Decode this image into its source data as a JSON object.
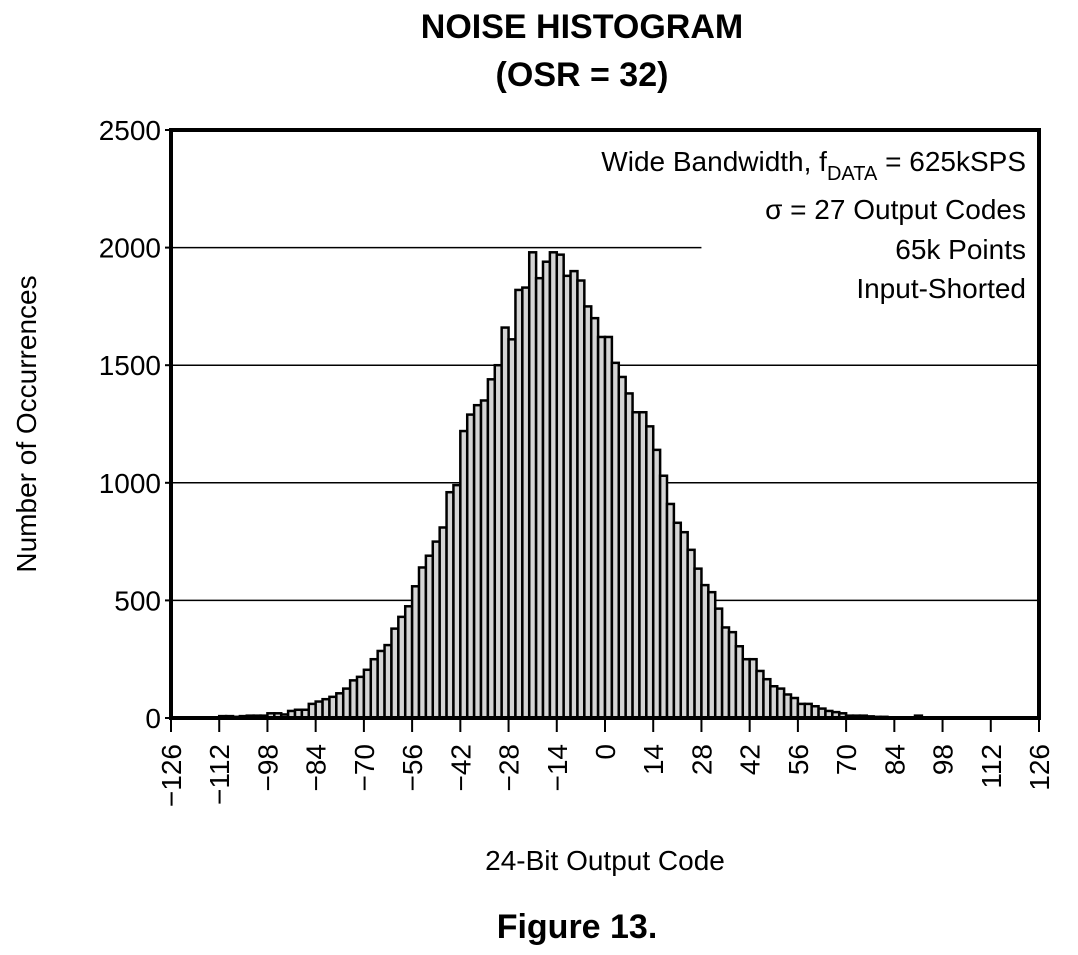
{
  "chart_data": {
    "type": "bar",
    "title": "NOISE HISTOGRAM",
    "subtitle": "(OSR = 32)",
    "xlabel": "24-Bit Output Code",
    "ylabel": "Number of Occurrences",
    "caption": "Figure 13.",
    "xlim": [
      -126,
      126
    ],
    "ylim": [
      0,
      2500
    ],
    "x_ticks": [
      -126,
      -112,
      -98,
      -84,
      -70,
      -56,
      -42,
      -28,
      -14,
      0,
      14,
      28,
      42,
      56,
      70,
      84,
      98,
      112,
      126
    ],
    "x_tick_labels": [
      "−126",
      "−112",
      "−98",
      "−84",
      "−70",
      "−56",
      "−42",
      "−28",
      "−14",
      "0",
      "14",
      "28",
      "42",
      "56",
      "70",
      "84",
      "98",
      "112",
      "126"
    ],
    "y_ticks": [
      0,
      500,
      1000,
      1500,
      2000,
      2500
    ],
    "y_tick_labels": [
      "0",
      "500",
      "1000",
      "1500",
      "2000",
      "2500"
    ],
    "grid": "horizontal",
    "bin_width": 2,
    "bins": [
      -111,
      -109,
      -107,
      -105,
      -103,
      -101,
      -99,
      -97,
      -95,
      -93,
      -91,
      -89,
      -87,
      -85,
      -83,
      -81,
      -79,
      -77,
      -75,
      -73,
      -71,
      -69,
      -67,
      -65,
      -63,
      -61,
      -59,
      -57,
      -55,
      -53,
      -51,
      -49,
      -47,
      -45,
      -43,
      -41,
      -39,
      -37,
      -35,
      -33,
      -31,
      -29,
      -27,
      -25,
      -23,
      -21,
      -19,
      -17,
      -15,
      -13,
      -11,
      -9,
      -7,
      -5,
      -3,
      -1,
      1,
      3,
      5,
      7,
      9,
      11,
      13,
      15,
      17,
      19,
      21,
      23,
      25,
      27,
      29,
      31,
      33,
      35,
      37,
      39,
      41,
      43,
      45,
      47,
      49,
      51,
      53,
      55,
      57,
      59,
      61,
      63,
      65,
      67,
      69,
      71,
      73,
      75,
      77,
      79,
      81,
      83,
      85,
      87,
      89,
      91,
      93,
      95,
      97,
      99,
      101,
      103,
      105,
      107,
      109
    ],
    "values": [
      8,
      8,
      5,
      8,
      10,
      10,
      10,
      20,
      20,
      15,
      30,
      35,
      35,
      60,
      70,
      80,
      90,
      105,
      125,
      160,
      175,
      205,
      250,
      285,
      310,
      380,
      430,
      475,
      560,
      640,
      690,
      750,
      810,
      960,
      990,
      1220,
      1290,
      1330,
      1350,
      1440,
      1500,
      1660,
      1610,
      1820,
      1830,
      1980,
      1870,
      1940,
      1980,
      1970,
      1880,
      1900,
      1860,
      1750,
      1700,
      1620,
      1620,
      1510,
      1450,
      1380,
      1300,
      1300,
      1240,
      1140,
      1030,
      910,
      830,
      790,
      715,
      635,
      565,
      535,
      465,
      385,
      365,
      305,
      250,
      250,
      200,
      165,
      135,
      125,
      100,
      85,
      60,
      60,
      50,
      40,
      30,
      25,
      20,
      10,
      10,
      10,
      7,
      5,
      5,
      3,
      3,
      3,
      3,
      10,
      3,
      3,
      2,
      2,
      2,
      2,
      2,
      2,
      2
    ],
    "legend_lines": [
      {
        "main": "Wide Bandwidth, f",
        "sub": "DATA",
        "rest": " = 625kSPS"
      },
      {
        "main": "σ = 27 Output Codes"
      },
      {
        "main": "65k Points"
      },
      {
        "main": "Input-Shorted"
      }
    ],
    "legend_position": "top-right",
    "bar_color": "#d4d4d4",
    "bar_edge_color": "#000000"
  }
}
